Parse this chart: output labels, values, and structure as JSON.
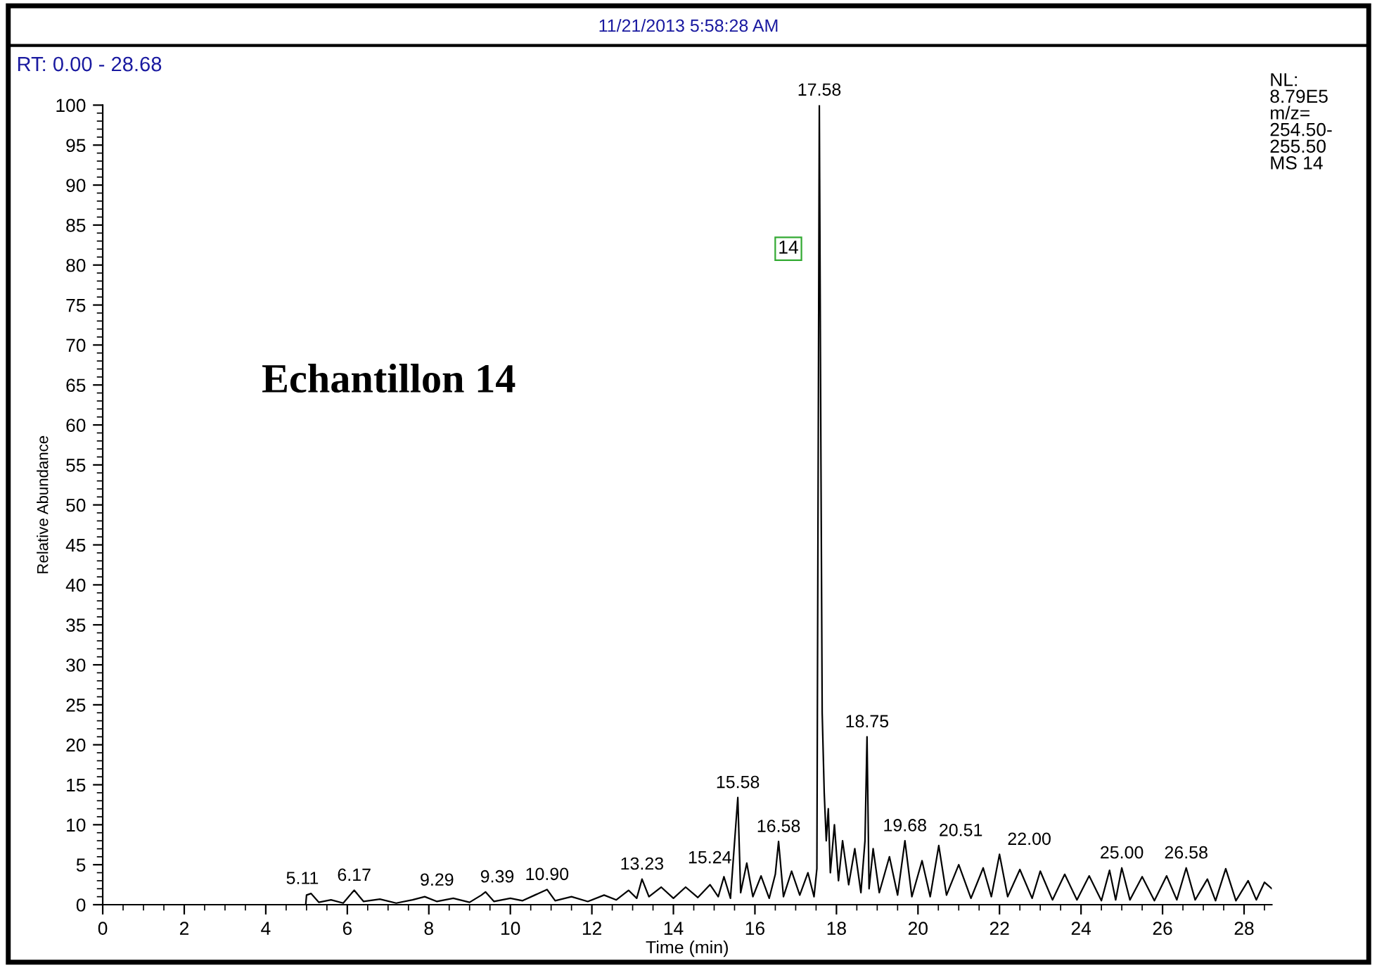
{
  "chart_data": {
    "type": "line",
    "xlabel": "Time (min)",
    "ylabel": "Relative Abundance",
    "xlim": [
      0,
      28.68
    ],
    "ylim": [
      0,
      100
    ],
    "xticks": [
      0,
      2,
      4,
      6,
      8,
      10,
      12,
      14,
      16,
      18,
      20,
      22,
      24,
      26,
      28
    ],
    "yticks": [
      0,
      5,
      10,
      15,
      20,
      25,
      30,
      35,
      40,
      45,
      50,
      55,
      60,
      65,
      70,
      75,
      80,
      85,
      90,
      95,
      100
    ],
    "grid": false,
    "legend": false,
    "marker": "none",
    "line_style": "solid",
    "series": [
      {
        "color": "#000000",
        "x": [
          0,
          4.98,
          5.0,
          5.11,
          5.3,
          5.6,
          5.9,
          6.1,
          6.17,
          6.4,
          6.8,
          7.2,
          7.6,
          7.9,
          8.2,
          8.6,
          9.0,
          9.29,
          9.39,
          9.6,
          10.0,
          10.3,
          10.6,
          10.9,
          11.1,
          11.5,
          11.9,
          12.3,
          12.6,
          12.9,
          13.1,
          13.23,
          13.4,
          13.7,
          14.0,
          14.3,
          14.6,
          14.9,
          15.1,
          15.24,
          15.4,
          15.58,
          15.65,
          15.8,
          15.95,
          16.15,
          16.35,
          16.5,
          16.58,
          16.7,
          16.9,
          17.1,
          17.3,
          17.45,
          17.52,
          17.58,
          17.62,
          17.65,
          17.7,
          17.75,
          17.8,
          17.85,
          17.95,
          18.05,
          18.15,
          18.3,
          18.45,
          18.6,
          18.7,
          18.75,
          18.8,
          18.9,
          19.05,
          19.3,
          19.5,
          19.68,
          19.85,
          20.1,
          20.3,
          20.51,
          20.7,
          21.0,
          21.3,
          21.6,
          21.8,
          22.0,
          22.2,
          22.5,
          22.8,
          23.0,
          23.3,
          23.6,
          23.9,
          24.2,
          24.5,
          24.7,
          24.85,
          25.0,
          25.2,
          25.5,
          25.8,
          26.1,
          26.35,
          26.58,
          26.8,
          27.1,
          27.3,
          27.55,
          27.8,
          28.1,
          28.3,
          28.5,
          28.68
        ],
        "values": [
          0,
          0,
          1.2,
          1.4,
          0.3,
          0.6,
          0.2,
          1.4,
          1.8,
          0.4,
          0.7,
          0.2,
          0.6,
          1.0,
          0.4,
          0.8,
          0.3,
          1.2,
          1.6,
          0.4,
          0.8,
          0.5,
          1.2,
          1.9,
          0.5,
          1.0,
          0.4,
          1.2,
          0.6,
          1.8,
          0.8,
          3.2,
          1.0,
          2.2,
          0.8,
          2.2,
          0.9,
          2.5,
          1.0,
          3.5,
          0.8,
          13.4,
          1.5,
          5.2,
          1.0,
          3.6,
          0.8,
          3.8,
          7.9,
          1.0,
          4.2,
          1.2,
          4.0,
          1.0,
          4.5,
          100,
          55,
          24,
          14,
          8,
          12,
          4,
          10,
          3,
          8,
          2.5,
          7,
          1.5,
          8,
          21,
          2,
          7,
          1.5,
          6,
          1.2,
          8,
          1.0,
          5.5,
          1.0,
          7.4,
          1.2,
          5.0,
          0.8,
          4.6,
          1.0,
          6.3,
          1.0,
          4.4,
          0.8,
          4.2,
          0.6,
          3.8,
          0.6,
          3.6,
          0.5,
          4.3,
          0.6,
          4.6,
          0.6,
          3.5,
          0.5,
          3.6,
          0.6,
          4.6,
          0.6,
          3.2,
          0.5,
          4.5,
          0.5,
          3.0,
          0.6,
          2.8,
          2.0
        ]
      }
    ],
    "annotations": [
      {
        "text": "17.58",
        "x": 17.58,
        "y": 100
      },
      {
        "text": "18.75",
        "x": 18.75,
        "y": 21
      },
      {
        "text": "15.58",
        "x": 15.58,
        "y": 13.4
      },
      {
        "text": "16.58",
        "x": 16.58,
        "y": 7.9
      },
      {
        "text": "19.68",
        "x": 19.68,
        "y": 8
      },
      {
        "text": "20.51",
        "x": 20.51,
        "y": 7.4
      },
      {
        "text": "22.00",
        "x": 22.0,
        "y": 6.3
      },
      {
        "text": "25.00",
        "x": 25.0,
        "y": 4.6
      },
      {
        "text": "26.58",
        "x": 26.58,
        "y": 4.6
      },
      {
        "text": "15.24",
        "x": 15.24,
        "y": 3.5
      },
      {
        "text": "13.23",
        "x": 13.23,
        "y": 3.2
      },
      {
        "text": "10.90",
        "x": 10.9,
        "y": 1.9
      },
      {
        "text": "9.39",
        "x": 9.39,
        "y": 1.6
      },
      {
        "text": "9.29",
        "x": 9.29,
        "y": 1.2
      },
      {
        "text": "6.17",
        "x": 6.17,
        "y": 1.8
      },
      {
        "text": "5.11",
        "x": 5.11,
        "y": 1.4
      },
      "11/21/2013 5:58:28 AM",
      "RT: 0.00 - 28.68",
      "NL:\n8.79E5\nm/z=\n254.50-\n255.50\nMS 14",
      "Echantillon 14",
      "14"
    ]
  }
}
